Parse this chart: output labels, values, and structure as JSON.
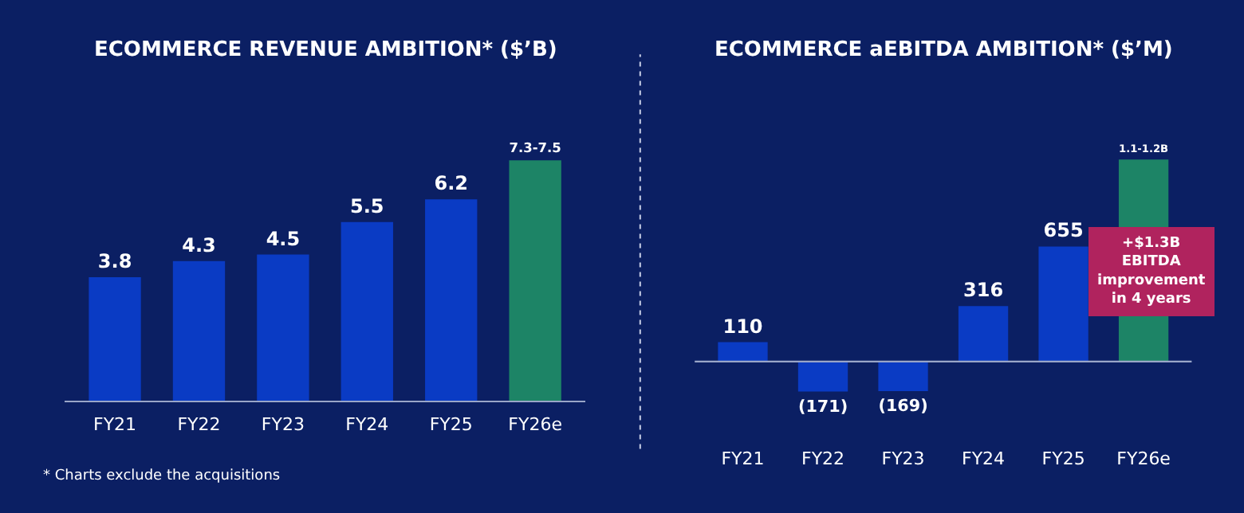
{
  "chart_data": [
    {
      "type": "bar",
      "title": "ECOMMERCE REVENUE AMBITION* ($’B)",
      "categories": [
        "FY21",
        "FY22",
        "FY23",
        "FY24",
        "FY25",
        "FY26e"
      ],
      "values": [
        3.8,
        4.3,
        4.5,
        5.5,
        6.2,
        7.4
      ],
      "value_labels": [
        "3.8",
        "4.3",
        "4.5",
        "5.5",
        "6.2",
        "7.3-7.5"
      ],
      "colors": [
        "#0a3bc4",
        "#0a3bc4",
        "#0a3bc4",
        "#0a3bc4",
        "#0a3bc4",
        "#1d8466"
      ],
      "tick_labels": "x",
      "grid": false,
      "annotations": [
        "* Charts exclude the acquisitions"
      ]
    },
    {
      "type": "bar",
      "title": "ECOMMERCE aEBITDA AMBITION* ($’M)",
      "categories": [
        "FY21",
        "FY22",
        "FY23",
        "FY24",
        "FY25",
        "FY26e"
      ],
      "values": [
        110,
        -171,
        -169,
        316,
        655,
        1150
      ],
      "value_labels": [
        "110",
        "(171)",
        "(169)",
        "316",
        "655",
        "1.1-1.2B"
      ],
      "colors": [
        "#0a3bc4",
        "#0a3bc4",
        "#0a3bc4",
        "#0a3bc4",
        "#0a3bc4",
        "#1d8466"
      ],
      "tick_labels": "x",
      "grid": false,
      "ref_lines": [
        {
          "axis": "y",
          "value": 0,
          "color": "#9aa6c8"
        }
      ],
      "annotations": [
        "+$1.3B\nEBITDA\nimprovement\nin 4 years"
      ]
    }
  ]
}
